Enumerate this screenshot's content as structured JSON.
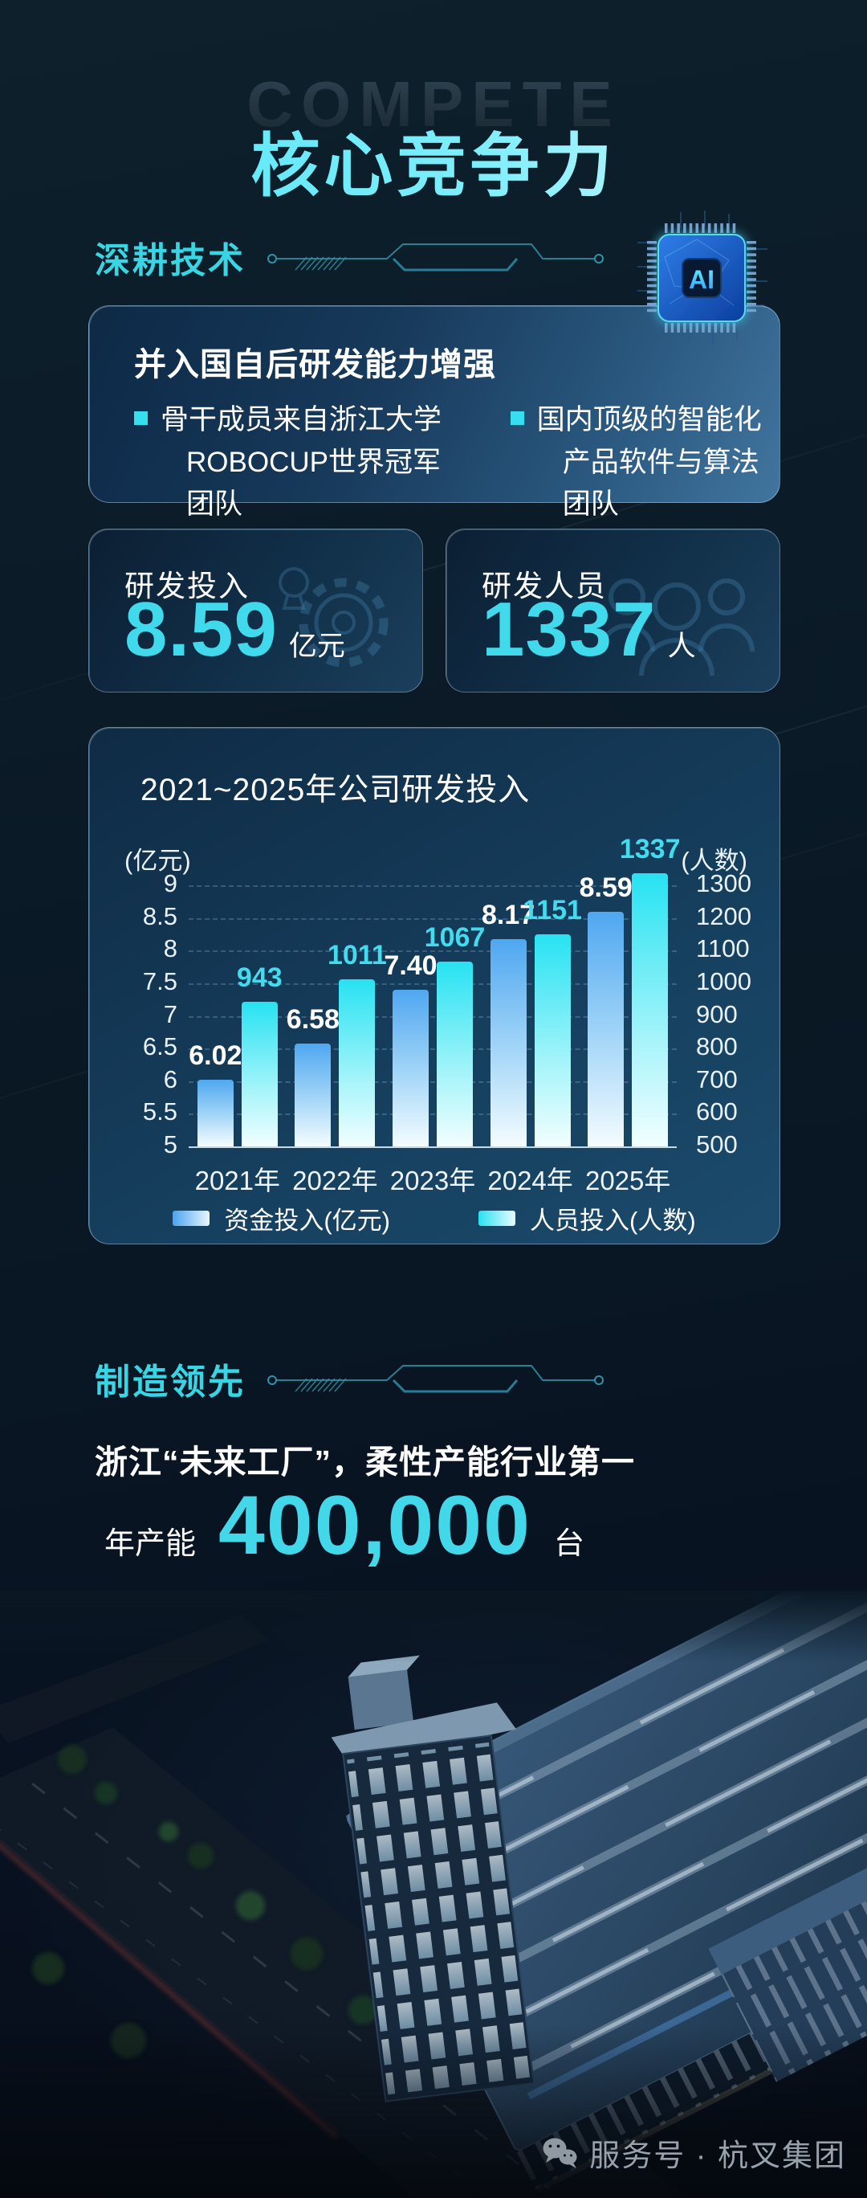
{
  "page": {
    "ghost_text": "COMPETE",
    "title": "核心竞争力"
  },
  "tech_section": {
    "header": "深耕技术",
    "chip_label": "AI",
    "card": {
      "title": "并入国自后研发能力增强",
      "bullets": [
        {
          "line1": "骨干成员来自浙江大学",
          "line2": "ROBOCUP世界冠军团队"
        },
        {
          "line1": "国内顶级的智能化",
          "line2": "产品软件与算法团队"
        }
      ]
    },
    "stats": [
      {
        "label": "研发投入",
        "value": "8.59",
        "unit": "亿元",
        "icon": "gear-icon"
      },
      {
        "label": "研发人员",
        "value": "1337",
        "unit": "人",
        "icon": "people-icon"
      }
    ]
  },
  "chart_data": {
    "type": "bar",
    "title": "2021~2025年公司研发投入",
    "categories": [
      "2021年",
      "2022年",
      "2023年",
      "2024年",
      "2025年"
    ],
    "series": [
      {
        "name": "资金投入(亿元)",
        "axis": "left",
        "values": [
          6.02,
          6.58,
          7.4,
          8.17,
          8.59
        ],
        "labels": [
          "6.02",
          "6.58",
          "7.40",
          "8.17",
          "8.59"
        ],
        "color_top": "#4aa6f0",
        "color_bottom": "#f4fcff"
      },
      {
        "name": "人员投入(人数)",
        "axis": "right",
        "values": [
          943,
          1011,
          1067,
          1151,
          1337
        ],
        "labels": [
          "943",
          "1011",
          "1067",
          "1151",
          "1337"
        ],
        "color_top": "#29e2f1",
        "color_bottom": "#f2feff"
      }
    ],
    "left_axis": {
      "unit": "(亿元)",
      "ticks": [
        "9",
        "8.5",
        "8",
        "7.5",
        "7",
        "6.5",
        "6",
        "5.5",
        "5"
      ],
      "min": 5,
      "max": 9
    },
    "right_axis": {
      "unit": "(人数)",
      "ticks": [
        "1300",
        "1200",
        "1100",
        "1000",
        "900",
        "800",
        "700",
        "600",
        "500"
      ],
      "min": 500,
      "max": 1300
    },
    "grid": "dashed",
    "legend_position": "bottom"
  },
  "manufacturing_section": {
    "header": "制造领先",
    "statement": "浙江“未来工厂”，柔性产能行业第一",
    "capacity": {
      "prefix": "年产能",
      "value": "400,000",
      "unit": "台"
    }
  },
  "footer": {
    "account": "服务号 · 杭叉集团",
    "icon": "wechat-icon"
  },
  "colors": {
    "background": "#0a1822",
    "title_cyan": "#5fe7f8",
    "section_cyan": "#38d6e4",
    "accent_cyan": "#43d9ec",
    "bar_blue": "#4aa6f0",
    "bar_cyan": "#29e2f1",
    "card_blue": "#2a587f",
    "footer_gray": "#98a2ac"
  }
}
